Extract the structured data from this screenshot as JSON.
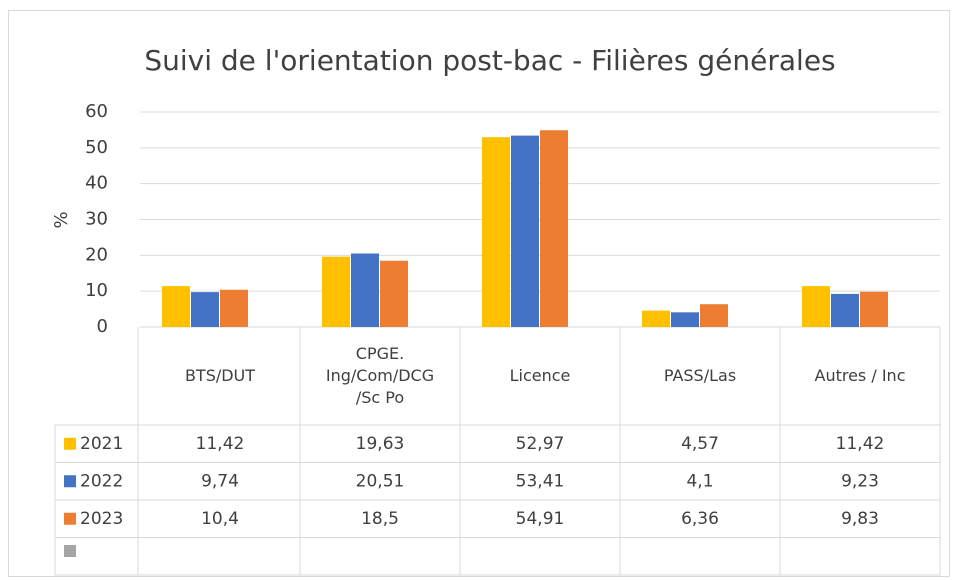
{
  "chart_data": {
    "type": "bar",
    "title": "Suivi de l'orientation post-bac - Filières générales",
    "y_label": "%",
    "categories": [
      "BTS/DUT",
      "CPGE.\nIng/Com/DCG\n/Sc Po",
      "Licence",
      "PASS/Las",
      "Autres / Inc"
    ],
    "series": [
      {
        "name": "2021",
        "color": "#ffc000",
        "values": [
          11.42,
          19.63,
          52.97,
          4.57,
          11.42
        ],
        "value_labels": [
          "11,42",
          "19,63",
          "52,97",
          "4,57",
          "11,42"
        ]
      },
      {
        "name": "2022",
        "color": "#4472c4",
        "values": [
          9.74,
          20.51,
          53.41,
          4.1,
          9.23
        ],
        "value_labels": [
          "9,74",
          "20,51",
          "53,41",
          "4,1",
          "9,23"
        ]
      },
      {
        "name": "2023",
        "color": "#ed7d31",
        "values": [
          10.4,
          18.5,
          54.91,
          6.36,
          9.83
        ],
        "value_labels": [
          "10,4",
          "18,5",
          "54,91",
          "6,36",
          "9,83"
        ]
      }
    ],
    "ylim": [
      0,
      60
    ],
    "yticks": [
      0,
      10,
      20,
      30,
      40,
      50,
      60
    ],
    "grid": true
  }
}
